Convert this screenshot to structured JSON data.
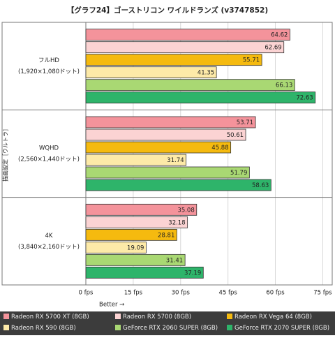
{
  "chart_data": {
    "type": "bar",
    "orientation": "horizontal",
    "title": "【グラフ24】ゴーストリコン ワイルドランズ (v3747852)",
    "y_axis_label": "描画設定［ウルトラ］",
    "x_axis_label": "Better →",
    "categories": [
      "フルHD",
      "WQHD",
      "4K"
    ],
    "category_notes": [
      "(1,920×1,080ドット)",
      "(2,560×1,440ドット)",
      "(3,840×2,160ドット)"
    ],
    "series": [
      {
        "name": "Radeon RX 5700 XT (8GB)",
        "color": "#f4939b",
        "values": [
          64.62,
          53.71,
          35.08
        ]
      },
      {
        "name": "Radeon RX 5700 (8GB)",
        "color": "#fbd3d3",
        "values": [
          62.69,
          50.61,
          32.18
        ]
      },
      {
        "name": "Radeon RX Vega 64 (8GB)",
        "color": "#f5ba0f",
        "values": [
          55.71,
          45.88,
          28.81
        ]
      },
      {
        "name": "Radeon RX 590 (8GB)",
        "color": "#fdeaa8",
        "values": [
          41.35,
          31.74,
          19.09
        ]
      },
      {
        "name": "GeForce RTX 2060 SUPER (8GB)",
        "color": "#a9d873",
        "values": [
          66.13,
          51.79,
          31.41
        ]
      },
      {
        "name": "GeForce RTX 2070 SUPER (8GB)",
        "color": "#2eb46a",
        "values": [
          72.63,
          58.63,
          37.19
        ]
      }
    ],
    "xlim": [
      0,
      78
    ],
    "xticks": [
      {
        "value": 0,
        "label": "0 fps"
      },
      {
        "value": 15,
        "label": "15 fps"
      },
      {
        "value": 30,
        "label": "30 fps"
      },
      {
        "value": 45,
        "label": "45 fps"
      },
      {
        "value": 60,
        "label": "60 fps"
      },
      {
        "value": 75,
        "label": "75 fps"
      }
    ],
    "grid": true
  }
}
